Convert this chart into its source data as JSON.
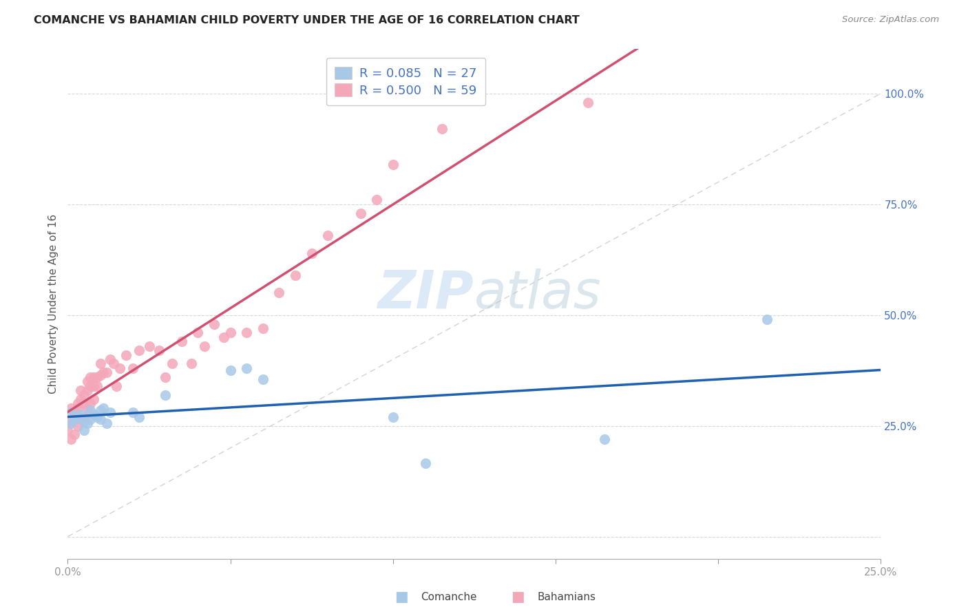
{
  "title": "COMANCHE VS BAHAMIAN CHILD POVERTY UNDER THE AGE OF 16 CORRELATION CHART",
  "source": "Source: ZipAtlas.com",
  "ylabel": "Child Poverty Under the Age of 16",
  "xlim": [
    0.0,
    0.25
  ],
  "ylim": [
    -0.05,
    1.1
  ],
  "comanche_color": "#a8c8e8",
  "bahamian_color": "#f4a7b9",
  "comanche_line_color": "#2060b0",
  "bahamian_line_color": "#d05070",
  "diagonal_color": "#c8c8c8",
  "legend_r1": "R = 0.085",
  "legend_n1": "N = 27",
  "legend_r2": "R = 0.500",
  "legend_n2": "N = 59",
  "comanche_x": [
    0.001,
    0.001,
    0.002,
    0.003,
    0.004,
    0.005,
    0.005,
    0.006,
    0.007,
    0.007,
    0.008,
    0.009,
    0.01,
    0.01,
    0.011,
    0.012,
    0.013,
    0.02,
    0.022,
    0.03,
    0.05,
    0.055,
    0.06,
    0.1,
    0.11,
    0.165,
    0.215
  ],
  "comanche_y": [
    0.28,
    0.255,
    0.265,
    0.27,
    0.275,
    0.26,
    0.24,
    0.255,
    0.265,
    0.285,
    0.275,
    0.27,
    0.285,
    0.265,
    0.29,
    0.255,
    0.28,
    0.28,
    0.27,
    0.32,
    0.375,
    0.38,
    0.355,
    0.27,
    0.165,
    0.22,
    0.49
  ],
  "bahamian_x": [
    0.0,
    0.001,
    0.001,
    0.001,
    0.002,
    0.002,
    0.003,
    0.003,
    0.003,
    0.004,
    0.004,
    0.004,
    0.005,
    0.005,
    0.005,
    0.006,
    0.006,
    0.006,
    0.007,
    0.007,
    0.007,
    0.008,
    0.008,
    0.008,
    0.009,
    0.009,
    0.01,
    0.01,
    0.011,
    0.012,
    0.013,
    0.014,
    0.015,
    0.016,
    0.018,
    0.02,
    0.022,
    0.025,
    0.028,
    0.03,
    0.032,
    0.035,
    0.038,
    0.04,
    0.042,
    0.045,
    0.048,
    0.05,
    0.055,
    0.06,
    0.065,
    0.07,
    0.075,
    0.08,
    0.09,
    0.095,
    0.1,
    0.115,
    0.16
  ],
  "bahamian_y": [
    0.24,
    0.22,
    0.26,
    0.29,
    0.23,
    0.28,
    0.25,
    0.29,
    0.3,
    0.265,
    0.31,
    0.33,
    0.27,
    0.3,
    0.32,
    0.29,
    0.33,
    0.35,
    0.3,
    0.34,
    0.36,
    0.31,
    0.34,
    0.36,
    0.34,
    0.36,
    0.365,
    0.39,
    0.37,
    0.37,
    0.4,
    0.39,
    0.34,
    0.38,
    0.41,
    0.38,
    0.42,
    0.43,
    0.42,
    0.36,
    0.39,
    0.44,
    0.39,
    0.46,
    0.43,
    0.48,
    0.45,
    0.46,
    0.46,
    0.47,
    0.55,
    0.59,
    0.64,
    0.68,
    0.73,
    0.76,
    0.84,
    0.92,
    0.98
  ]
}
